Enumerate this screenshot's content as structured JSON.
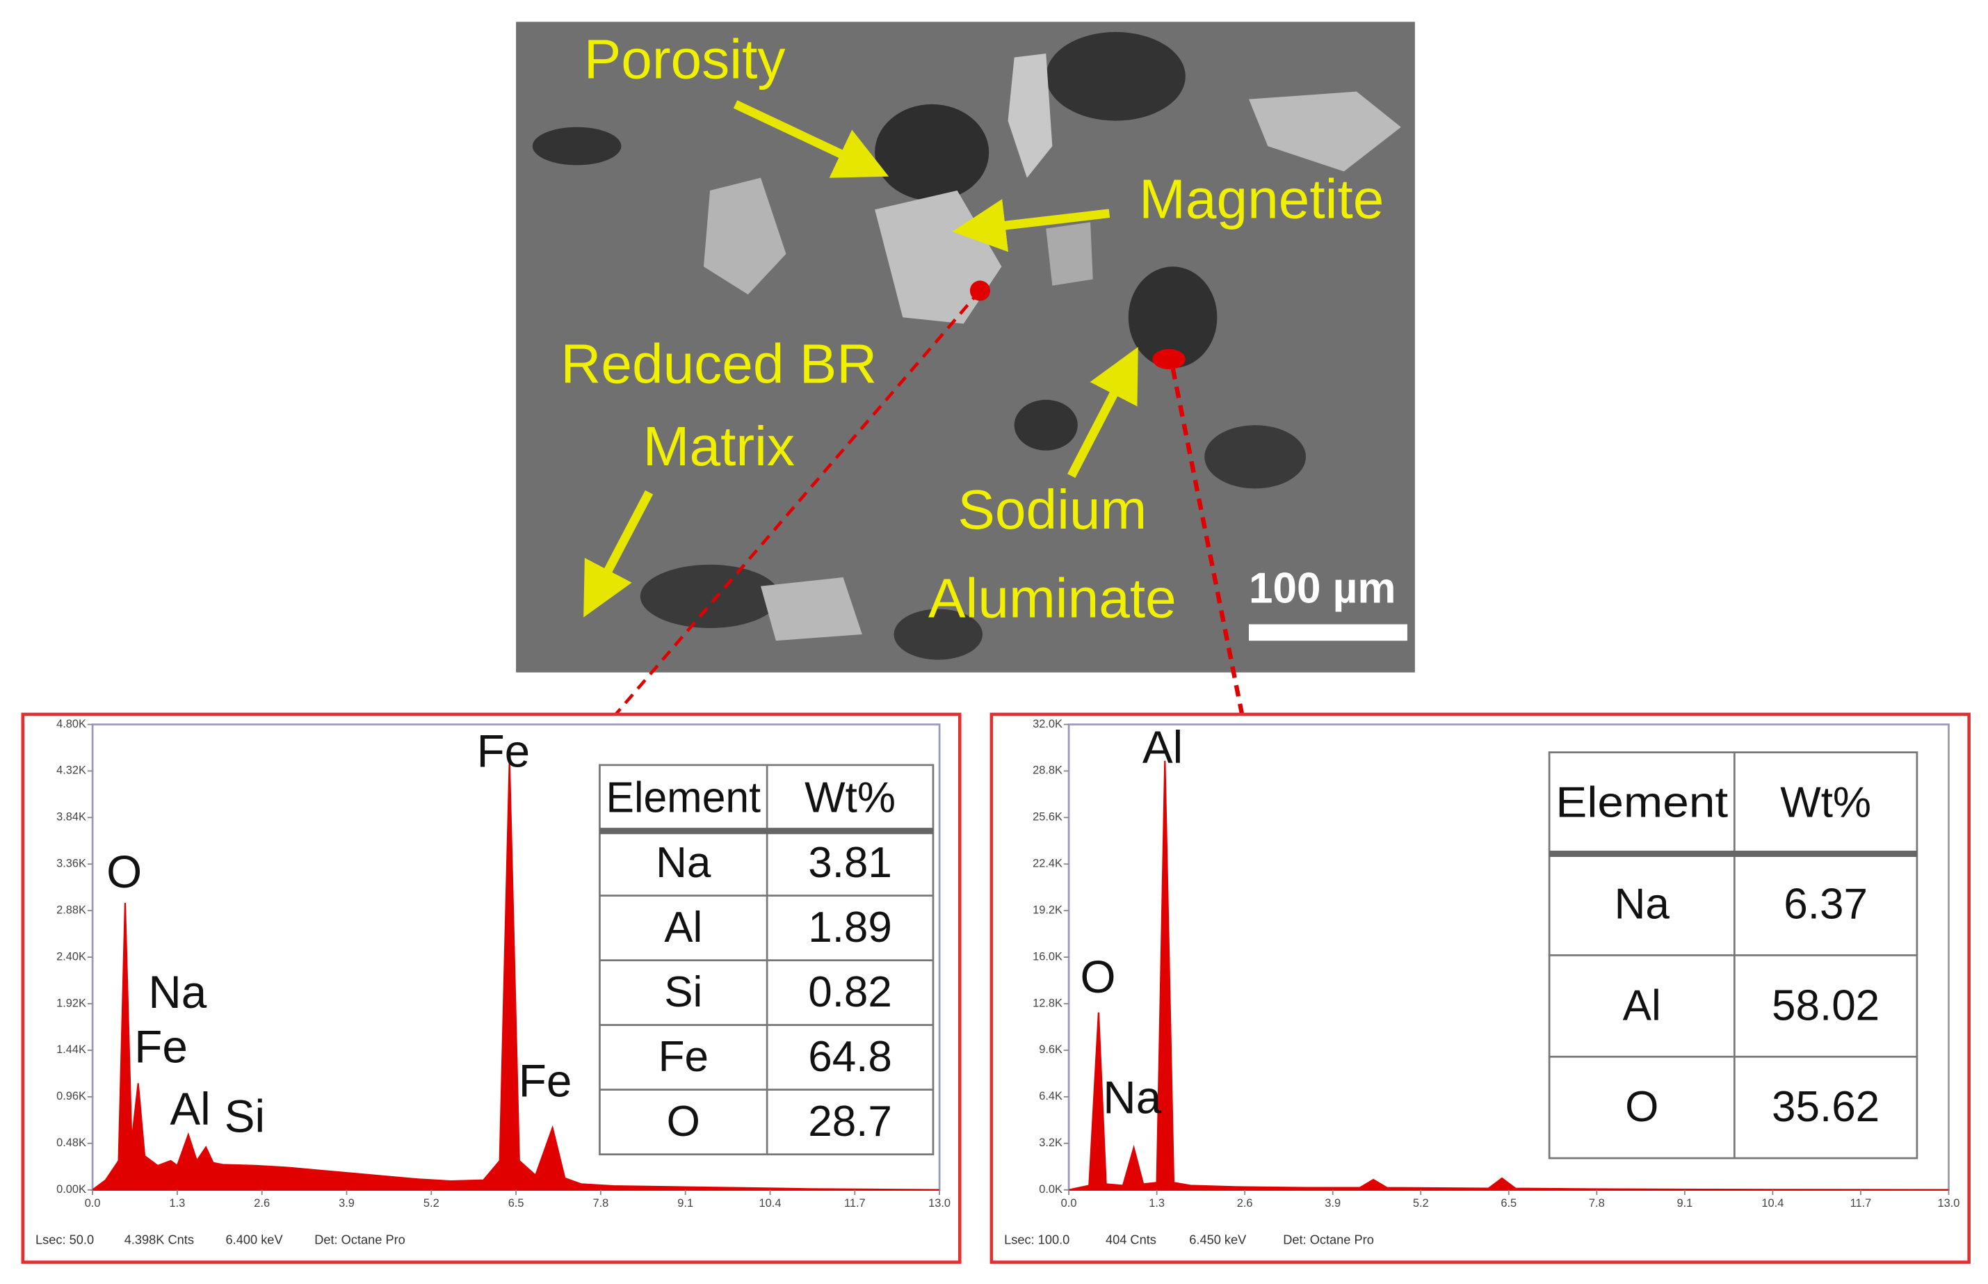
{
  "image": {
    "labels": [
      "Porosity",
      "Magnetite",
      "Reduced BR",
      "Matrix",
      "Sodium",
      "Aluminate"
    ],
    "scale_bar": "100 µm"
  },
  "chart_data": [
    {
      "type": "area",
      "color": "#e00000",
      "x": [
        0,
        0.2,
        0.4,
        0.5,
        0.6,
        0.7,
        0.8,
        1.0,
        1.2,
        1.3,
        1.47,
        1.6,
        1.74,
        1.85,
        2.0,
        2.5,
        3.0,
        3.5,
        4.0,
        4.5,
        5.0,
        5.5,
        6.0,
        6.25,
        6.4,
        6.55,
        6.8,
        7.06,
        7.25,
        7.5,
        8.0,
        9.0,
        10.0,
        11.0,
        12.0,
        13.0
      ],
      "values": [
        0,
        100,
        300,
        2960,
        500,
        1100,
        350,
        250,
        300,
        250,
        570,
        300,
        440,
        280,
        260,
        250,
        230,
        200,
        170,
        140,
        110,
        90,
        100,
        300,
        4430,
        300,
        150,
        640,
        120,
        60,
        40,
        30,
        20,
        10,
        5,
        0
      ],
      "xlim": [
        0,
        13
      ],
      "ylim": [
        0,
        4800
      ],
      "xticks": [
        {
          "value": 0,
          "label": "0.0"
        },
        1.3,
        2.6,
        3.9,
        5.2,
        6.5,
        7.8,
        9.1,
        10.4,
        11.7,
        {
          "value": 13,
          "label": "13.0"
        }
      ],
      "yticks": [
        {
          "value": 0,
          "label": "0.00K"
        },
        {
          "value": 480,
          "label": "0.48K"
        },
        {
          "value": 960,
          "label": "0.96K"
        },
        {
          "value": 1440,
          "label": "1.44K"
        },
        {
          "value": 1920,
          "label": "1.92K"
        },
        {
          "value": 2400,
          "label": "2.40K"
        },
        {
          "value": 2880,
          "label": "2.88K"
        },
        {
          "value": 3360,
          "label": "3.36K"
        },
        {
          "value": 3840,
          "label": "3.84K"
        },
        {
          "value": 4320,
          "label": "4.32K"
        },
        {
          "value": 4800,
          "label": "4.80K"
        }
      ],
      "peak_labels": [
        "O",
        "Na",
        "Fe",
        "Al",
        "Si",
        "Fe",
        "Fe"
      ],
      "table": {
        "header": [
          "Element",
          "Wt%"
        ],
        "rows": [
          [
            "Na",
            3.81
          ],
          [
            "Al",
            1.89
          ],
          [
            "Si",
            0.82
          ],
          [
            "Fe",
            64.8
          ],
          [
            "O",
            28.7
          ]
        ]
      },
      "footer": [
        "Lsec: 50.0",
        "4.398K Cnts",
        "6.400 keV",
        "Det: Octane Pro"
      ]
    },
    {
      "type": "area",
      "color": "#e00000",
      "x": [
        0,
        0.3,
        0.44,
        0.55,
        0.8,
        0.96,
        1.1,
        1.3,
        1.42,
        1.55,
        1.8,
        2.5,
        3.5,
        4.3,
        4.5,
        4.7,
        6.2,
        6.4,
        6.6,
        8.0,
        10.0,
        13.0
      ],
      "values": [
        0,
        300,
        12200,
        400,
        300,
        2900,
        400,
        500,
        29500,
        500,
        300,
        200,
        150,
        150,
        700,
        150,
        100,
        800,
        100,
        50,
        20,
        0
      ],
      "xlim": [
        0,
        13
      ],
      "ylim": [
        0,
        32000
      ],
      "xticks": [
        {
          "value": 0,
          "label": "0.0"
        },
        1.3,
        2.6,
        3.9,
        5.2,
        6.5,
        7.8,
        9.1,
        10.4,
        11.7,
        {
          "value": 13,
          "label": "13.0"
        }
      ],
      "yticks": [
        {
          "value": 0,
          "label": "0.0K"
        },
        {
          "value": 3200,
          "label": "3.2K"
        },
        {
          "value": 6400,
          "label": "6.4K"
        },
        {
          "value": 9600,
          "label": "9.6K"
        },
        {
          "value": 12800,
          "label": "12.8K"
        },
        {
          "value": 16000,
          "label": "16.0K"
        },
        {
          "value": 19200,
          "label": "19.2K"
        },
        {
          "value": 22400,
          "label": "22.4K"
        },
        {
          "value": 25600,
          "label": "25.6K"
        },
        {
          "value": 28800,
          "label": "28.8K"
        },
        {
          "value": 32000,
          "label": "32.0K"
        }
      ],
      "peak_labels": [
        "Al",
        "O",
        "Na"
      ],
      "table": {
        "header": [
          "Element",
          "Wt%"
        ],
        "rows": [
          [
            "Na",
            6.37
          ],
          [
            "Al",
            58.02
          ],
          [
            "O",
            35.62
          ]
        ]
      },
      "footer": [
        "Lsec: 100.0",
        "404 Cnts",
        "6.450 keV",
        "Det: Octane Pro"
      ]
    }
  ]
}
